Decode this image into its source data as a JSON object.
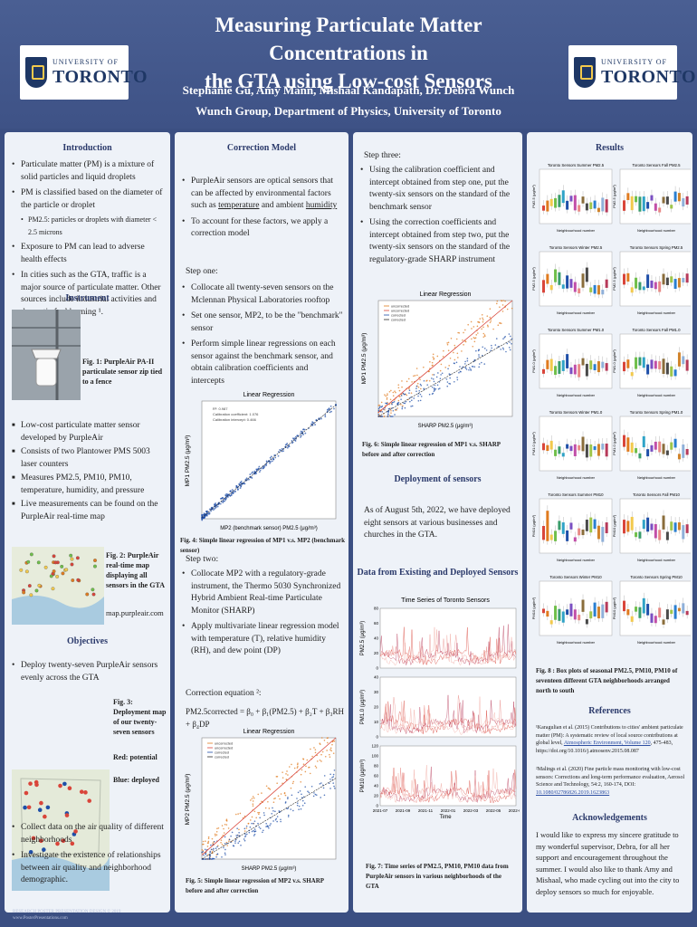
{
  "header": {
    "title_line1": "Measuring Particulate Matter Concentrations in",
    "title_line2": "the GTA using Low-cost Sensors",
    "authors": "Stephanie Gu, Amy Mann, Mishaal Kandapath, Dr. Debra Wunch",
    "affiliation": "Wunch Group, Department of Physics, University of Toronto",
    "logo_line1": "UNIVERSITY OF",
    "logo_line2": "TORONTO"
  },
  "intro": {
    "title": "Introduction",
    "b1": "Particulate matter (PM) is a mixture of solid particles and liquid droplets",
    "b2": "PM is classified based on the diameter of the particle or droplet",
    "b2_sub": "PM2.5: particles or droplets with diameter < 2.5 microns",
    "b3": "Exposure to PM can lead to adverse health effects",
    "b4": "In cities such as the GTA, traffic is a major source of particulate matter. Other sources include industrial activities and domestic fuel burning ¹."
  },
  "instrument": {
    "title": "Instrument",
    "fig1_caption": "Fig. 1: PurpleAir PA-II particulate sensor zip tied to a fence",
    "b1": "Low-cost particulate matter sensor developed by PurpleAir",
    "b2": "Consists of two Plantower PMS 5003 laser counters",
    "b3": "Measures PM2.5, PM10, PM10, temperature, humidity, and pressure",
    "b4": "Live measurements can be found on the PurpleAir real-time map",
    "fig2_caption": "Fig. 2: PurpleAir real-time map displaying all sensors in the GTA",
    "fig2_link": "map.purpleair.com"
  },
  "objectives": {
    "title": "Objectives",
    "b1": "Deploy twenty-seven PurpleAir sensors evenly across the GTA",
    "fig3_caption": "Fig. 3: Deployment map of our twenty-seven sensors",
    "red_label": "Red: potential",
    "blue_label": "Blue: deployed",
    "b2": "Collect data on the air quality of different neighborhoods",
    "b3": "Investigate the existence of relationships between air quality and neighborhood demographic."
  },
  "correction": {
    "title": "Correction Model",
    "b1_pre": "PurpleAir sensors are optical sensors that can be affected by environmental factors such as ",
    "b1_u1": "temperature",
    "b1_mid": " and ambient ",
    "b1_u2": "humidity",
    "b2": "To account for these factors, we apply a correction model",
    "step1": "Step one:",
    "s1b1": "Collocate all twenty-seven sensors on the Mclennan Physical Laboratories rooftop",
    "s1b2": "Set one sensor, MP2, to be the \"benchmark\" sensor",
    "s1b3": "Perform simple linear regressions on each sensor against the benchmark sensor, and obtain calibration coefficients and intercepts",
    "fig4_caption": "Fig. 4: Simple linear regression of MP1 v.s. MP2 (benchmark sensor)",
    "step2": "Step two:",
    "s2b1": "Collocate MP2 with a regulatory-grade instrument, the Thermo 5030 Synchronized Hybrid Ambient Real-time Particulate Monitor (SHARP)",
    "s2b2": "Apply multivariate linear regression model with temperature (T), relative humidity (RH), and dew point (DP)",
    "eq_label": "Correction equation ²:",
    "eq": "PM2.5corrected = β₀ + β₁(PM2.5) + β₂T + β₃RH + β₄DP",
    "fig5_caption": "Fig. 5: Simple linear regression of MP2 v.s. SHARP before and after correction"
  },
  "step3": {
    "title": "Step three:",
    "b1": "Using the calibration coefficient and intercept obtained from step one, put the twenty-six sensors on the standard of the benchmark sensor",
    "b2": "Using the correction coefficients and intercept obtained from step two, put the twenty-six sensors on the standard of the regulatory-grade SHARP instrument",
    "fig6_caption": "Fig. 6: Simple linear regression of MP1 v.s. SHARP before and after correction"
  },
  "deployment": {
    "title": "Deployment of sensors",
    "text": "As of August 5th, 2022, we have deployed eight sensors at various businesses and churches in the GTA."
  },
  "data_section": {
    "title": "Data from Existing and Deployed Sensors",
    "fig7_caption": "Fig. 7: Time series of PM2.5, PM10, PM10 data from PurpleAir sensors in various neighborhoods of the GTA"
  },
  "results": {
    "title": "Results",
    "panels": [
      "Toronto Sensors Summer PM2.5",
      "Toronto Sensors Fall PM2.5",
      "Toronto Sensors Winter PM2.5",
      "Toronto Sensors Spring PM2.5",
      "Toronto Sensors Summer PM1.0",
      "Toronto Sensors Fall PM1.0",
      "Toronto Sensors Winter PM1.0",
      "Toronto Sensors Spring PM1.0",
      "Toronto Sensors Summer PM10",
      "Toronto Sensors Fall PM10",
      "Toronto Sensors Winter PM10",
      "Toronto Sensors Spring PM10"
    ],
    "xlabel": "Neighbourhood number",
    "fig8_caption": "Fig. 8 : Box plots of seasonal PM2.5, PM10, PM10 of seventeen different GTA neighborhoods arranged north to south"
  },
  "references": {
    "title": "References",
    "r1_pre": "¹Karagulian et al. (2015) Contributions to cities' ambient particulate matter (PM): A systematic review of local source contributions at global level, ",
    "r1_link": "Atmospheric Environment, Volume 120",
    "r1_post": ", 475-483, https://doi.org/10.1016/j.atmosenv.2015.08.087",
    "r2_pre": "²Malings et al. (2020) Fine particle mass monitoring with low-cost sensors: Corrections and long-term performance evaluation, Aerosol Science and Technology, 54:2, 160-174, DOI: ",
    "r2_link": "10.1080/02786826.2019.1623863"
  },
  "ack": {
    "title": "Acknowledgements",
    "text": "I would like to express my sincere gratitude to my wonderful supervisor, Debra, for all her support and encouragement throughout the summer. I would also like to thank Amy and Mishaal, who made cycling out into the city to deploy sensors so much for enjoyable."
  },
  "footer": {
    "line1": "RESEARCH POSTER PRESENTATION DESIGN © 2019",
    "line2": "www.PosterPresentations.com"
  },
  "chart_data": [
    {
      "type": "scatter",
      "title": "Linear Regression",
      "xlabel": "MP2 (benchmark sensor) PM2.5 (μg/m³)",
      "ylabel": "MP1 PM2.5 (μg/m³)",
      "annotations": [
        "R²: 0.987",
        "Calibration coefficient: 1.076",
        "Calibration intercept: 0.466"
      ],
      "series": [
        {
          "x": [
            1,
            3,
            5,
            8,
            12,
            16,
            20,
            25,
            30,
            35,
            40
          ],
          "y": [
            1.5,
            3.7,
            5.8,
            9.1,
            13.4,
            17.7,
            22.0,
            27.4,
            32.7,
            38.1,
            43.5
          ]
        }
      ],
      "xlim": [
        0,
        40
      ],
      "ylim": [
        0,
        45
      ]
    },
    {
      "type": "scatter",
      "title": "Linear Regression",
      "xlabel": "SHARP PM2.5 (μg/m³)",
      "ylabel": "MP2 PM2.5 (μg/m³)",
      "legend": [
        "uncorrected",
        "uncorrected",
        "corrected",
        "corrected"
      ],
      "xlim": [
        0,
        40
      ],
      "ylim": [
        0,
        60
      ]
    },
    {
      "type": "scatter",
      "title": "Linear Regression",
      "xlabel": "SHARP PM2.5 (μg/m³)",
      "ylabel": "MP1 PM2.5 (μg/m³)",
      "legend": [
        "uncorrected",
        "uncorrected",
        "corrected",
        "corrected"
      ],
      "xlim": [
        0,
        40
      ],
      "ylim": [
        0,
        60
      ]
    },
    {
      "type": "line",
      "title": "Time Series of Toronto Sensors",
      "xlabel": "Time",
      "x_ticks": [
        "2021-07",
        "2021-09",
        "2021-11",
        "2022-01",
        "2022-03",
        "2022-05",
        "2022-07"
      ],
      "panels": [
        {
          "ylabel": "PM2.5 (μg/m³)",
          "yticks": [
            0,
            20,
            40,
            60,
            80
          ]
        },
        {
          "ylabel": "PM1.0 (μg/m³)",
          "yticks": [
            0,
            10,
            20,
            30,
            40
          ]
        },
        {
          "ylabel": "PM10 (μg/m³)",
          "yticks": [
            0,
            20,
            40,
            60,
            80,
            100,
            120
          ]
        }
      ]
    }
  ],
  "colors": {
    "header": "#3e5286",
    "panel": "#eef2f8",
    "heading": "#2b3a6b",
    "blue_series": "#1f4fa8",
    "orange_series": "#e07b1f",
    "red_series": "#d9453a"
  }
}
